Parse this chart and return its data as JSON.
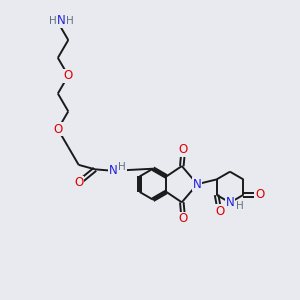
{
  "background_color": "#e8eaf0",
  "atom_colors": {
    "C": "#000000",
    "N": "#2020dd",
    "O": "#dd0000",
    "H": "#607080"
  },
  "bond_color": "#1a1a1a",
  "bond_width": 1.4,
  "figsize": [
    3.0,
    3.0
  ],
  "dpi": 100,
  "font_size": 8.5,
  "font_size_h": 7.5
}
